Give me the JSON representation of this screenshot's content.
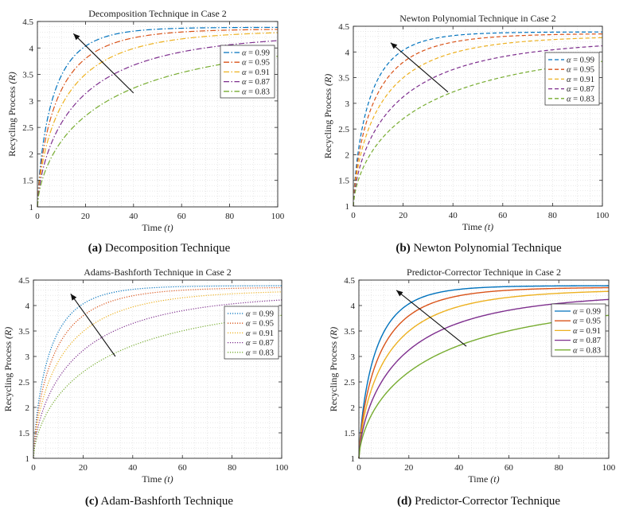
{
  "figure": {
    "colors": {
      "c099": "#0072bd",
      "c095": "#d95319",
      "c091": "#edb120",
      "c087": "#7e2f8e",
      "c083": "#77ac30",
      "grid": "#d9d9d9",
      "axis": "#262626",
      "arrow": "#111111"
    },
    "legend_alpha_symbol": "α"
  },
  "chart_data": [
    {
      "type": "line",
      "label": "(a)",
      "caption": "Decomposition Technique",
      "title": "Decomposition Technique in Case 2",
      "xlabel_text": "Time",
      "xlabel_var": "(t)",
      "ylabel_text": "Recycling Process",
      "ylabel_var": "(R)",
      "xlim": [
        0,
        100
      ],
      "ylim": [
        1,
        4.5
      ],
      "xticks": [
        "0",
        "20",
        "40",
        "60",
        "80",
        "100"
      ],
      "yticks": [
        "1",
        "1.5",
        "2",
        "2.5",
        "3",
        "3.5",
        "4",
        "4.5"
      ],
      "line_style": "dashdot",
      "legend_position": "right",
      "arrow": {
        "from": [
          40,
          3.15
        ],
        "to": [
          15,
          4.27
        ]
      },
      "series": [
        {
          "name": "α = 0.99",
          "label": "= 0.99",
          "color_key": "c099",
          "alpha": 0.99,
          "plateau": 4.39
        },
        {
          "name": "α = 0.95",
          "label": "= 0.95",
          "color_key": "c095",
          "alpha": 0.95,
          "plateau": 4.36
        },
        {
          "name": "α = 0.91",
          "label": "= 0.91",
          "color_key": "c091",
          "alpha": 0.91,
          "plateau": 4.33
        },
        {
          "name": "α = 0.87",
          "label": "= 0.87",
          "color_key": "c087",
          "alpha": 0.87,
          "plateau": 4.28
        },
        {
          "name": "α = 0.83",
          "label": "= 0.83",
          "color_key": "c083",
          "alpha": 0.83,
          "plateau": 4.21
        }
      ]
    },
    {
      "type": "line",
      "label": "(b)",
      "caption": "Newton Polynomial Technique",
      "title": "Newton Polynomial Technique in Case 2",
      "xlabel_text": "Time",
      "xlabel_var": "(t)",
      "ylabel_text": "Recycling Process",
      "ylabel_var": "(R)",
      "xlim": [
        0,
        100
      ],
      "ylim": [
        1,
        4.5
      ],
      "xticks": [
        "0",
        "20",
        "40",
        "60",
        "80",
        "100"
      ],
      "yticks": [
        "1",
        "1.5",
        "2",
        "2.5",
        "3",
        "3.5",
        "4",
        "4.5"
      ],
      "line_style": "dashed",
      "legend_position": "right",
      "arrow": {
        "from": [
          38,
          3.22
        ],
        "to": [
          15,
          4.18
        ]
      },
      "series": [
        {
          "name": "α = 0.99",
          "label": "= 0.99",
          "color_key": "c099",
          "alpha": 0.99,
          "plateau": 4.39
        },
        {
          "name": "α = 0.95",
          "label": "= 0.95",
          "color_key": "c095",
          "alpha": 0.95,
          "plateau": 4.36
        },
        {
          "name": "α = 0.91",
          "label": "= 0.91",
          "color_key": "c091",
          "alpha": 0.91,
          "plateau": 4.32
        },
        {
          "name": "α = 0.87",
          "label": "= 0.87",
          "color_key": "c087",
          "alpha": 0.87,
          "plateau": 4.26
        },
        {
          "name": "α = 0.83",
          "label": "= 0.83",
          "color_key": "c083",
          "alpha": 0.83,
          "plateau": 4.18
        }
      ]
    },
    {
      "type": "line",
      "label": "(c)",
      "caption": "Adam-Bashforth Technique",
      "title": "Adams-Bashforth Technique in Case 2",
      "xlabel_text": "Time",
      "xlabel_var": "(t)",
      "ylabel_text": "Recycling Process",
      "ylabel_var": "(R)",
      "xlim": [
        0,
        100
      ],
      "ylim": [
        1,
        4.5
      ],
      "xticks": [
        "0",
        "20",
        "40",
        "60",
        "80",
        "100"
      ],
      "yticks": [
        "1",
        "1.5",
        "2",
        "2.5",
        "3",
        "3.5",
        "4",
        "4.5"
      ],
      "line_style": "dotted",
      "legend_position": "right",
      "arrow": {
        "from": [
          33,
          3.0
        ],
        "to": [
          15,
          4.23
        ]
      },
      "series": [
        {
          "name": "α = 0.99",
          "label": "= 0.99",
          "color_key": "c099",
          "alpha": 0.99,
          "plateau": 4.39
        },
        {
          "name": "α = 0.95",
          "label": "= 0.95",
          "color_key": "c095",
          "alpha": 0.95,
          "plateau": 4.36
        },
        {
          "name": "α = 0.91",
          "label": "= 0.91",
          "color_key": "c091",
          "alpha": 0.91,
          "plateau": 4.31
        },
        {
          "name": "α = 0.87",
          "label": "= 0.87",
          "color_key": "c087",
          "alpha": 0.87,
          "plateau": 4.25
        },
        {
          "name": "α = 0.83",
          "label": "= 0.83",
          "color_key": "c083",
          "alpha": 0.83,
          "plateau": 4.17
        }
      ]
    },
    {
      "type": "line",
      "label": "(d)",
      "caption": "Predictor-Corrector Technique",
      "title": "Predictor-Corrector Technique in Case 2",
      "xlabel_text": "Time",
      "xlabel_var": "(t)",
      "ylabel_text": "Recycling Process",
      "ylabel_var": "(R)",
      "xlim": [
        0,
        100
      ],
      "ylim": [
        1,
        4.5
      ],
      "xticks": [
        "0",
        "20",
        "40",
        "60",
        "80",
        "100"
      ],
      "yticks": [
        "1",
        "1.5",
        "2",
        "2.5",
        "3",
        "3.5",
        "4",
        "4.5"
      ],
      "line_style": "solid",
      "legend_position": "right",
      "arrow": {
        "from": [
          43,
          3.2
        ],
        "to": [
          15,
          4.3
        ]
      },
      "series": [
        {
          "name": "α = 0.99",
          "label": "= 0.99",
          "color_key": "c099",
          "alpha": 0.99,
          "plateau": 4.39
        },
        {
          "name": "α = 0.95",
          "label": "= 0.95",
          "color_key": "c095",
          "alpha": 0.95,
          "plateau": 4.36
        },
        {
          "name": "α = 0.91",
          "label": "= 0.91",
          "color_key": "c091",
          "alpha": 0.91,
          "plateau": 4.32
        },
        {
          "name": "α = 0.87",
          "label": "= 0.87",
          "color_key": "c087",
          "alpha": 0.87,
          "plateau": 4.26
        },
        {
          "name": "α = 0.83",
          "label": "= 0.83",
          "color_key": "c083",
          "alpha": 0.83,
          "plateau": 4.17
        }
      ]
    }
  ]
}
